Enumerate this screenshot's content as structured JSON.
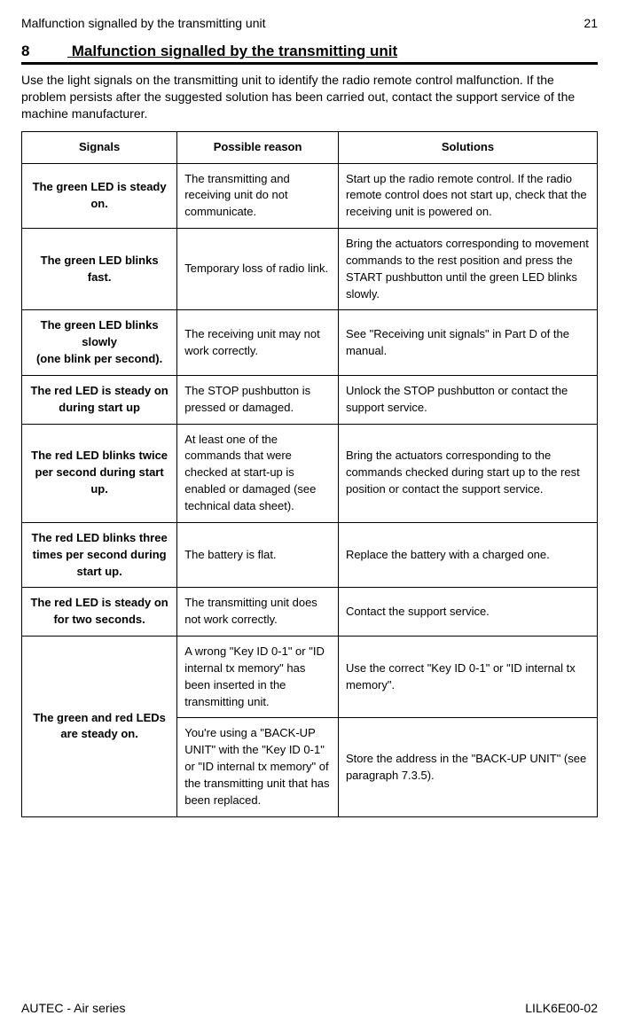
{
  "header": {
    "running_title": "Malfunction signalled by the transmitting unit",
    "page_number": "21"
  },
  "section": {
    "number": "8",
    "title": "Malfunction signalled by the transmitting unit"
  },
  "intro": "Use the light signals on the transmitting unit to identify the radio remote control malfunction. If the problem persists after the suggested solution has been carried out, contact the support service of the machine manufacturer.",
  "table": {
    "columns": [
      "Signals",
      "Possible reason",
      "Solutions"
    ],
    "rows": [
      {
        "signal": "The green LED is steady on.",
        "reason": "The transmitting and receiving unit do not communicate.",
        "solution": "Start up the radio remote control. If the radio remote control does not start up, check that the receiving unit is powered on."
      },
      {
        "signal": "The green LED blinks fast.",
        "reason": "Temporary loss of radio link.",
        "solution": "Bring the actuators corresponding to movement commands to the rest position and press the START pushbutton until the green LED blinks slowly."
      },
      {
        "signal": "The green LED blinks slowly\n(one blink per second).",
        "reason": "The receiving unit may not work correctly.",
        "solution": "See \"Receiving unit signals\" in Part D of the manual."
      },
      {
        "signal": "The red LED is steady on during start up",
        "reason": "The STOP pushbutton is pressed or damaged.",
        "solution": "Unlock the STOP pushbutton or contact the support service."
      },
      {
        "signal": "The red LED blinks twice per second during start up.",
        "reason": "At least one of the commands that were checked at start-up is enabled or damaged (see technical data sheet).",
        "solution": "Bring the actuators corresponding to the commands checked during start up to the rest position or contact the support service."
      },
      {
        "signal": "The red LED blinks three times per second during start up.",
        "reason": "The battery is flat.",
        "solution": "Replace the battery with a charged one."
      },
      {
        "signal": "The red LED is steady on for two seconds.",
        "reason": "The transmitting unit does not work correctly.",
        "solution": "Contact the support service."
      },
      {
        "signal": "The green and red LEDs are steady on.",
        "subrows": [
          {
            "reason": "A wrong \"Key ID 0-1\" or \"ID internal tx memory\" has been inserted in the transmitting unit.",
            "solution": "Use the correct \"Key ID 0-1\" or \"ID internal tx memory\"."
          },
          {
            "reason": "You're using a \"BACK-UP UNIT\" with the \"Key ID 0-1\" or  \"ID internal tx memory\" of the transmitting unit that has been replaced.",
            "solution": "Store the address in the \"BACK-UP UNIT\" (see paragraph 7.3.5)."
          }
        ]
      }
    ]
  },
  "footer": {
    "left": "AUTEC - Air series",
    "right": "LILK6E00-02"
  }
}
